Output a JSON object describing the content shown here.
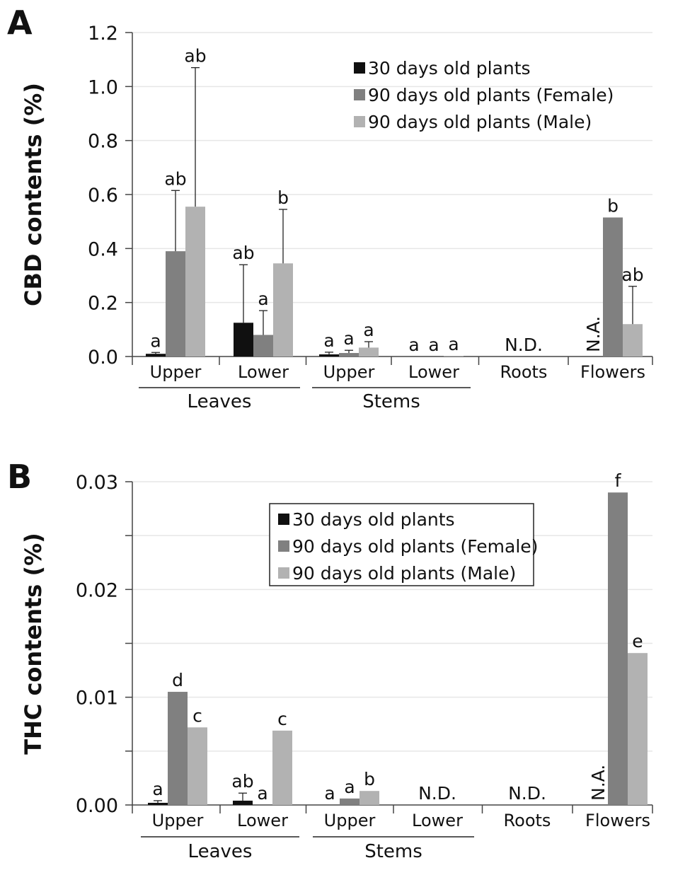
{
  "colors": {
    "s30": "#101010",
    "female": "#808080",
    "male": "#b2b2b2",
    "grid": "#e6e6e6",
    "axis": "#444444"
  },
  "chart_data": [
    {
      "panel": "A",
      "type": "bar",
      "ylabel": "CBD contents (%)",
      "ylim": [
        0,
        1.2
      ],
      "yticks": [
        "0.0",
        "0.2",
        "0.4",
        "0.6",
        "0.8",
        "1.0",
        "1.2"
      ],
      "grid": true,
      "legend_position": "top-right",
      "categories": [
        "Upper",
        "Lower",
        "Upper",
        "Lower",
        "Roots",
        "Flowers"
      ],
      "groups": [
        {
          "label": "Leaves",
          "from": 0,
          "to": 1
        },
        {
          "label": "Stems",
          "from": 2,
          "to": 3
        }
      ],
      "series": [
        {
          "name": "30 days old plants",
          "color": "s30",
          "values": [
            0.01,
            0.125,
            0.008,
            0,
            0,
            null
          ],
          "errors": [
            0.005,
            0.215,
            0.008,
            0,
            0,
            null
          ]
        },
        {
          "name": "90 days old plants (Female)",
          "color": "female",
          "values": [
            0.39,
            0.08,
            0.013,
            0,
            0,
            0.515
          ],
          "errors": [
            0.225,
            0.09,
            0.01,
            0,
            0,
            0
          ]
        },
        {
          "name": "90 days old plants (Male)",
          "color": "male",
          "values": [
            0.555,
            0.345,
            0.033,
            0.002,
            0,
            0.12
          ],
          "errors": [
            0.515,
            0.2,
            0.022,
            0,
            0,
            0.14
          ]
        }
      ],
      "significance": [
        [
          "a",
          "ab",
          "ab"
        ],
        [
          "ab",
          "a",
          "b"
        ],
        [
          "a",
          "a",
          "a"
        ],
        [
          "a",
          "a",
          "a"
        ],
        [
          null,
          null,
          null
        ],
        [
          null,
          "b",
          "ab"
        ]
      ],
      "notes": [
        {
          "text": "N.D.",
          "category": 4,
          "series": 1,
          "rotated": false
        },
        {
          "text": "N.A.",
          "category": 5,
          "series": 0,
          "rotated": true
        }
      ]
    },
    {
      "panel": "B",
      "type": "bar",
      "ylabel": "THC contents (%)",
      "ylim": [
        0,
        0.03
      ],
      "yticks": [
        "0.00",
        "0.01",
        "0.02",
        "0.03"
      ],
      "minor_ticks": 0.005,
      "grid": true,
      "legend_position": "top-center",
      "categories": [
        "Upper",
        "Lower",
        "Upper",
        "Lower",
        "Roots",
        "Flowers"
      ],
      "groups": [
        {
          "label": "Leaves",
          "from": 0,
          "to": 1
        },
        {
          "label": "Stems",
          "from": 2,
          "to": 3
        }
      ],
      "series": [
        {
          "name": "30 days old plants",
          "color": "s30",
          "values": [
            0.0002,
            0.0004,
            0,
            0,
            0,
            null
          ],
          "errors": [
            0.0002,
            0.0007,
            0,
            0,
            0,
            null
          ]
        },
        {
          "name": "90 days old plants (Female)",
          "color": "female",
          "values": [
            0.0105,
            0,
            0.0006,
            0,
            0,
            0.029
          ],
          "errors": [
            0,
            0,
            0,
            0,
            0,
            0
          ]
        },
        {
          "name": "90 days old plants (Male)",
          "color": "male",
          "values": [
            0.0072,
            0.0069,
            0.0013,
            0,
            0,
            0.0141
          ],
          "errors": [
            0,
            0,
            0,
            0,
            0,
            0
          ]
        }
      ],
      "significance": [
        [
          "a",
          "d",
          "c"
        ],
        [
          "ab",
          "a",
          "c"
        ],
        [
          "a",
          "a",
          "b"
        ],
        [
          null,
          null,
          null
        ],
        [
          null,
          null,
          null
        ],
        [
          null,
          "f",
          "e"
        ]
      ],
      "notes": [
        {
          "text": "N.D.",
          "category": 3,
          "series": 1,
          "rotated": false
        },
        {
          "text": "N.D.",
          "category": 4,
          "series": 1,
          "rotated": false
        },
        {
          "text": "N.A.",
          "category": 5,
          "series": 0,
          "rotated": true
        }
      ]
    }
  ]
}
